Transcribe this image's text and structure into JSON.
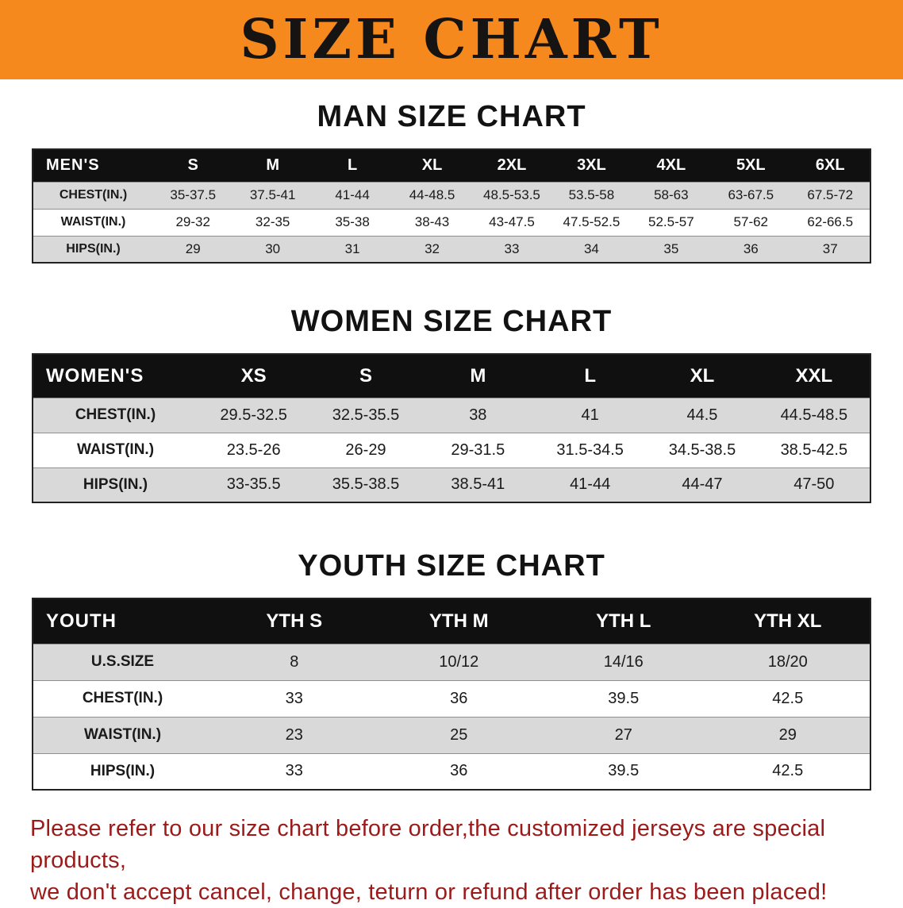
{
  "banner": {
    "title": "SIZE CHART"
  },
  "colors": {
    "banner_bg": "#F6891E",
    "header_bg": "#101010",
    "row_shade": "#D9D9D9",
    "footer_text": "#9B1B1B"
  },
  "sections": [
    {
      "heading": "MAN SIZE CHART",
      "table": {
        "label": "MEN'S",
        "columns": [
          "S",
          "M",
          "L",
          "XL",
          "2XL",
          "3XL",
          "4XL",
          "5XL",
          "6XL"
        ],
        "rows": [
          {
            "label": "CHEST(IN.)",
            "values": [
              "35-37.5",
              "37.5-41",
              "41-44",
              "44-48.5",
              "48.5-53.5",
              "53.5-58",
              "58-63",
              "63-67.5",
              "67.5-72"
            ]
          },
          {
            "label": "WAIST(IN.)",
            "values": [
              "29-32",
              "32-35",
              "35-38",
              "38-43",
              "43-47.5",
              "47.5-52.5",
              "52.5-57",
              "57-62",
              "62-66.5"
            ]
          },
          {
            "label": "HIPS(IN.)",
            "values": [
              "29",
              "30",
              "31",
              "32",
              "33",
              "34",
              "35",
              "36",
              "37"
            ]
          }
        ]
      }
    },
    {
      "heading": "WOMEN SIZE CHART",
      "table": {
        "label": "WOMEN'S",
        "columns": [
          "XS",
          "S",
          "M",
          "L",
          "XL",
          "XXL"
        ],
        "rows": [
          {
            "label": "CHEST(IN.)",
            "values": [
              "29.5-32.5",
              "32.5-35.5",
              "38",
              "41",
              "44.5",
              "44.5-48.5"
            ]
          },
          {
            "label": "WAIST(IN.)",
            "values": [
              "23.5-26",
              "26-29",
              "29-31.5",
              "31.5-34.5",
              "34.5-38.5",
              "38.5-42.5"
            ]
          },
          {
            "label": "HIPS(IN.)",
            "values": [
              "33-35.5",
              "35.5-38.5",
              "38.5-41",
              "41-44",
              "44-47",
              "47-50"
            ]
          }
        ]
      }
    },
    {
      "heading": "YOUTH SIZE CHART",
      "table": {
        "label": "YOUTH",
        "columns": [
          "YTH S",
          "YTH M",
          "YTH L",
          "YTH XL"
        ],
        "rows": [
          {
            "label": "U.S.SIZE",
            "values": [
              "8",
              "10/12",
              "14/16",
              "18/20"
            ]
          },
          {
            "label": "CHEST(IN.)",
            "values": [
              "33",
              "36",
              "39.5",
              "42.5"
            ]
          },
          {
            "label": "WAIST(IN.)",
            "values": [
              "23",
              "25",
              "27",
              "29"
            ]
          },
          {
            "label": "HIPS(IN.)",
            "values": [
              "33",
              "36",
              "39.5",
              "42.5"
            ]
          }
        ]
      }
    }
  ],
  "footer": {
    "line1": "Please refer to our size chart before order,the customized jerseys are special products,",
    "line2": "we don't accept cancel, change, teturn or refund after order has been placed!"
  }
}
